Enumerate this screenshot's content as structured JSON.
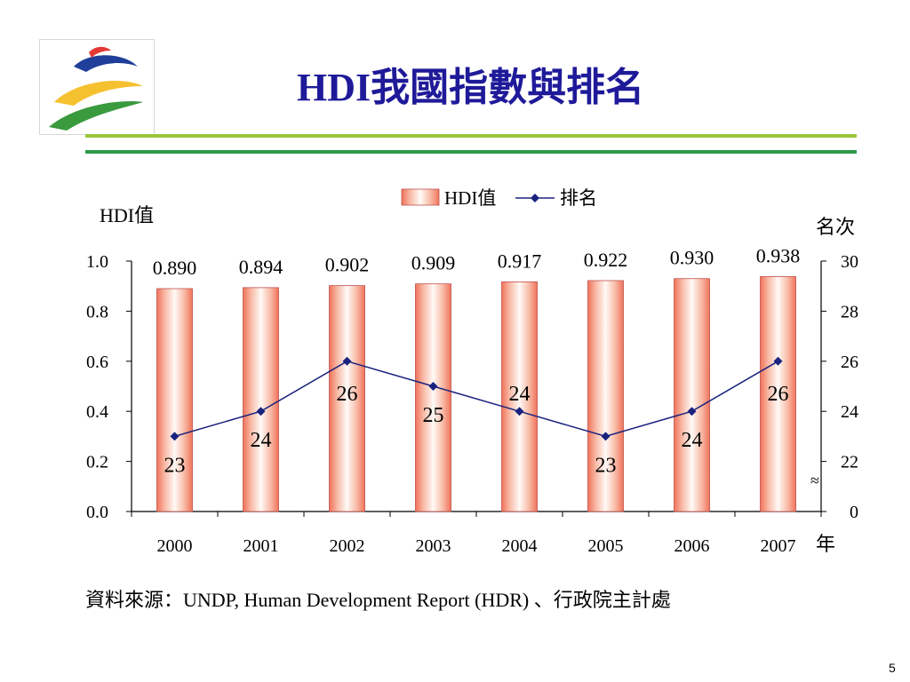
{
  "slide": {
    "title": "HDI我國指數與排名",
    "source": "資料來源：UNDP, Human Development Report (HDR) 、行政院主計處",
    "page_number": "5"
  },
  "chart_data": {
    "type": "bar",
    "categories": [
      "2000",
      "2001",
      "2002",
      "2003",
      "2004",
      "2005",
      "2006",
      "2007"
    ],
    "xlabel": "年",
    "ylabel": "HDI值",
    "ylim": [
      0,
      1.0
    ],
    "yticks": [
      "0.0",
      "0.2",
      "0.4",
      "0.6",
      "0.8",
      "1.0"
    ],
    "y2label": "名次",
    "y2ticks": [
      "0",
      "22",
      "24",
      "26",
      "28",
      "30"
    ],
    "y2_axis_break": true,
    "y2_range_above_break": [
      22,
      30
    ],
    "legend_position": "top",
    "grid": false,
    "series": [
      {
        "name": "HDI值",
        "kind": "bar",
        "axis": "left",
        "values": [
          0.89,
          0.894,
          0.902,
          0.909,
          0.917,
          0.922,
          0.93,
          0.938
        ],
        "labels": [
          "0.890",
          "0.894",
          "0.902",
          "0.909",
          "0.917",
          "0.922",
          "0.930",
          "0.938"
        ],
        "color": "#f0735a"
      },
      {
        "name": "排名",
        "kind": "line",
        "axis": "right",
        "values": [
          23,
          24,
          26,
          25,
          24,
          23,
          24,
          26
        ],
        "labels": [
          "23",
          "24",
          "26",
          "25",
          "24",
          "23",
          "24",
          "26"
        ],
        "color": "#1a237e"
      }
    ]
  }
}
